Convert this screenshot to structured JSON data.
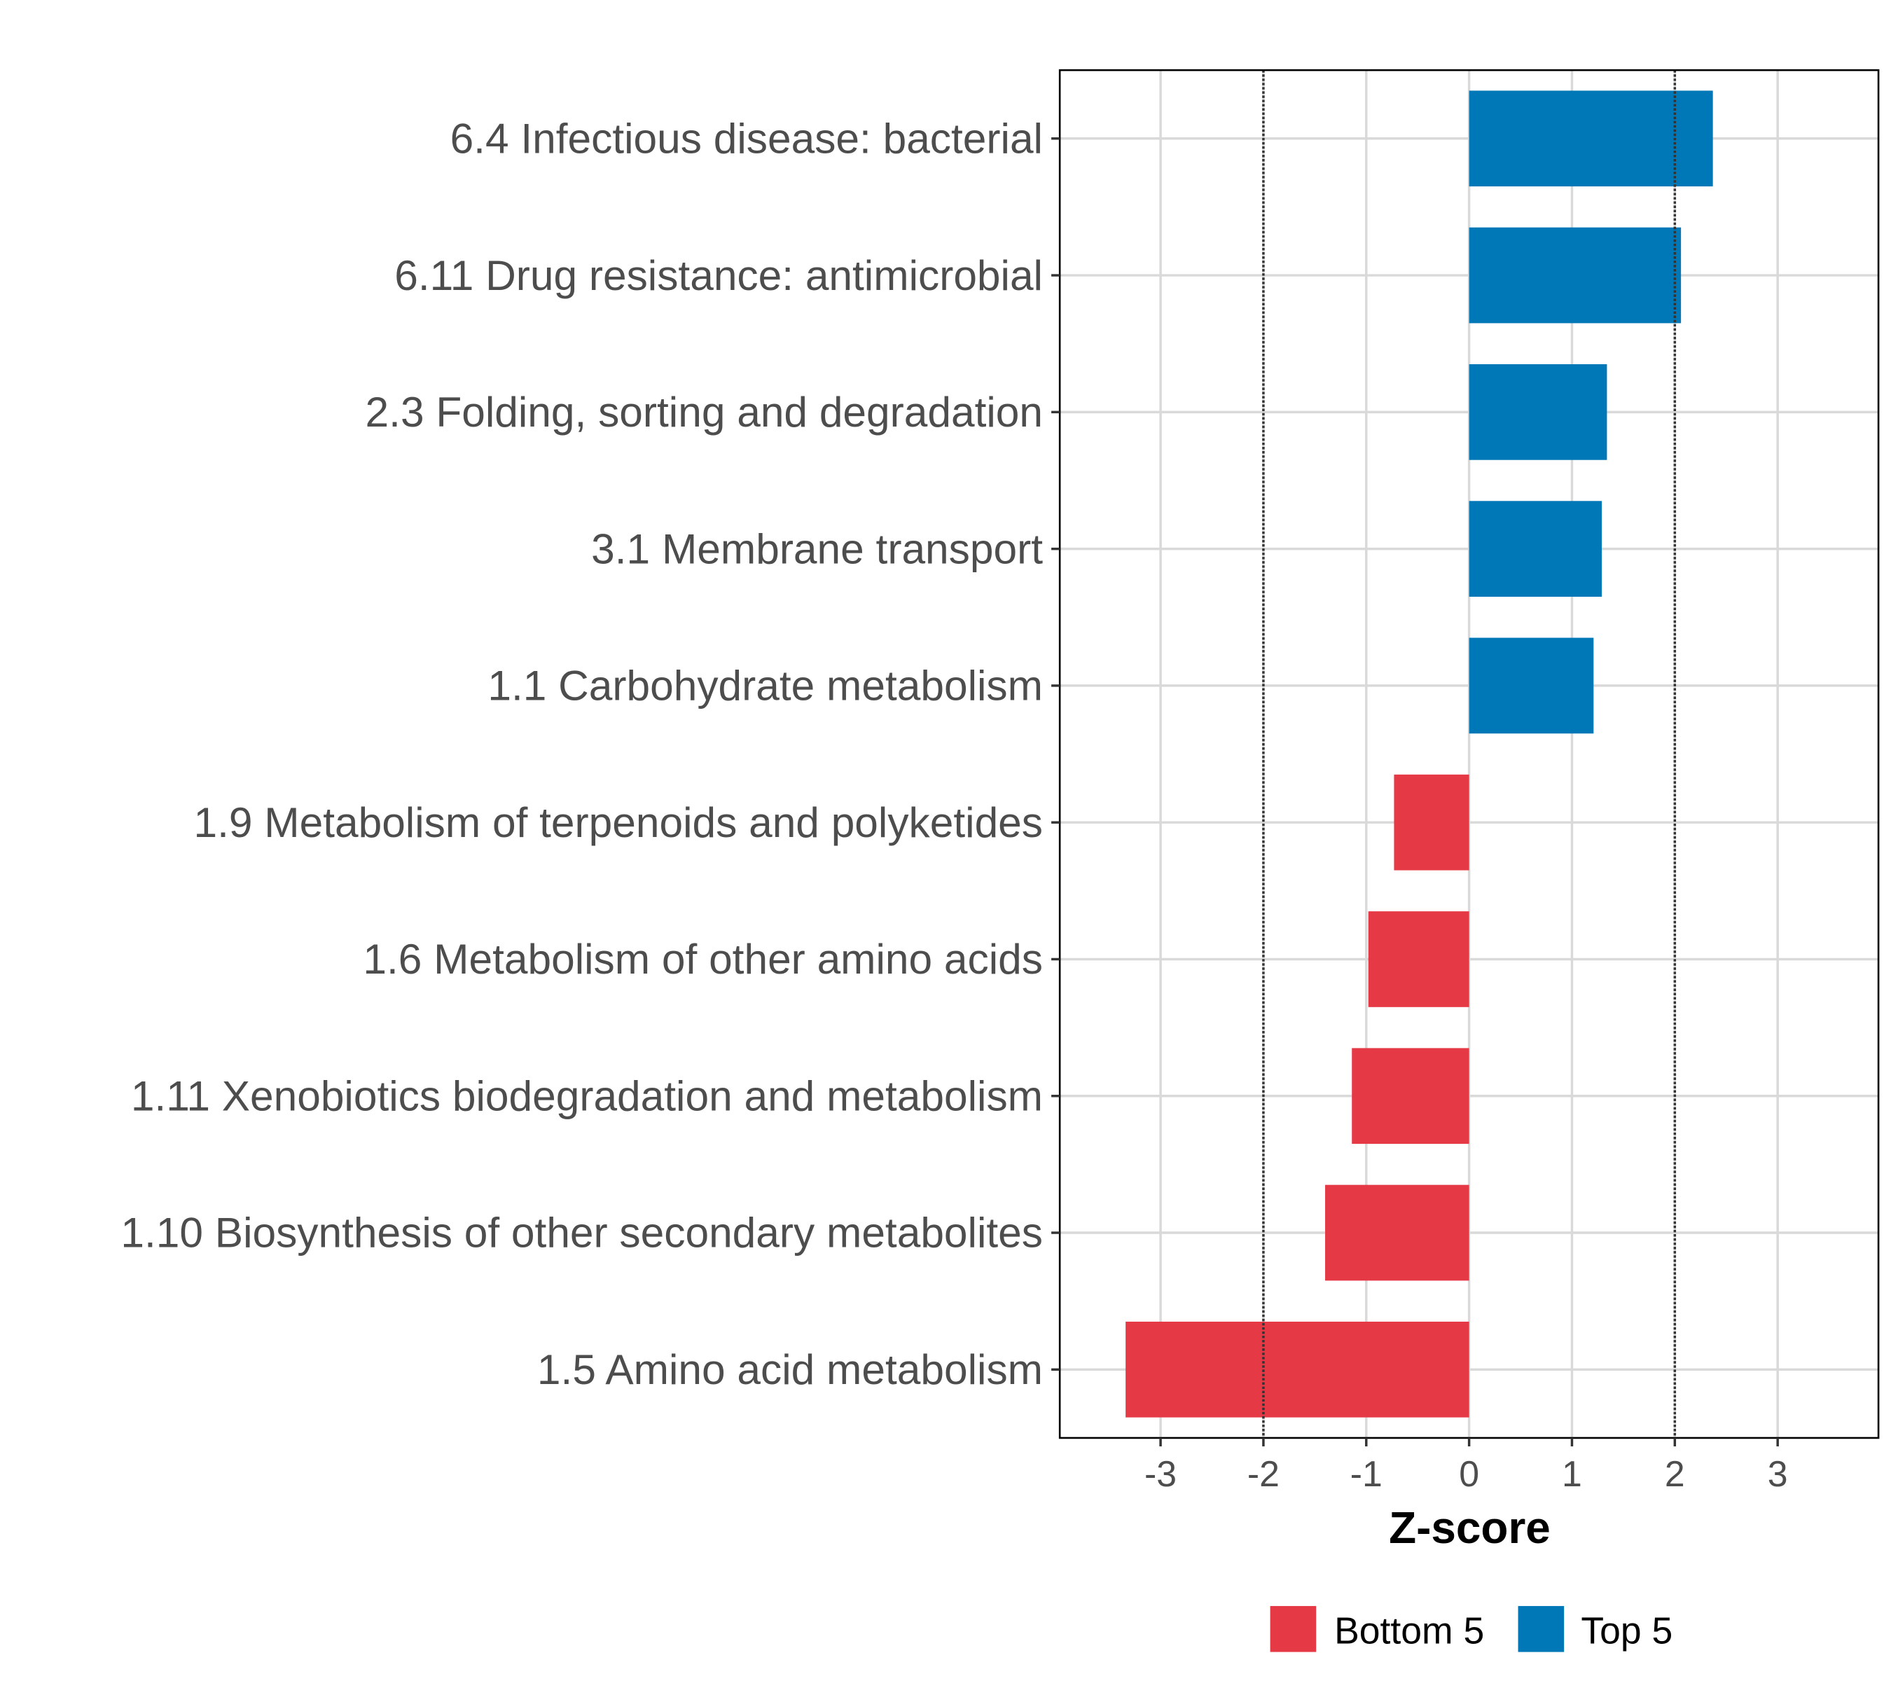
{
  "chart_data": {
    "type": "bar",
    "orientation": "horizontal",
    "title": "",
    "xlabel": "Z-score",
    "ylabel": "",
    "xlim": [
      -3.98,
      3.98
    ],
    "xticks": [
      -3,
      -2,
      -1,
      0,
      1,
      2,
      3
    ],
    "xtick_labels": [
      "-3",
      "-2",
      "-1",
      "0",
      "1",
      "2",
      "3"
    ],
    "reference_lines": [
      -2,
      2
    ],
    "grid": true,
    "categories": [
      "6.4 Infectious disease: bacterial",
      "6.11 Drug resistance: antimicrobial",
      "2.3 Folding, sorting and degradation",
      "3.1 Membrane transport",
      "1.1 Carbohydrate metabolism",
      "1.9 Metabolism of terpenoids and polyketides",
      "1.6 Metabolism of other amino acids",
      "1.11 Xenobiotics biodegradation and metabolism",
      "1.10 Biosynthesis of other secondary metabolites",
      "1.5 Amino acid metabolism"
    ],
    "values": [
      2.37,
      2.06,
      1.34,
      1.29,
      1.21,
      -0.73,
      -0.98,
      -1.14,
      -1.4,
      -3.34
    ],
    "groups": [
      "Top 5",
      "Top 5",
      "Top 5",
      "Top 5",
      "Top 5",
      "Bottom 5",
      "Bottom 5",
      "Bottom 5",
      "Bottom 5",
      "Bottom 5"
    ],
    "legend": {
      "position": "bottom",
      "entries": [
        {
          "label": "Bottom 5",
          "color": "#E63946"
        },
        {
          "label": "Top 5",
          "color": "#0077B6"
        }
      ]
    }
  }
}
